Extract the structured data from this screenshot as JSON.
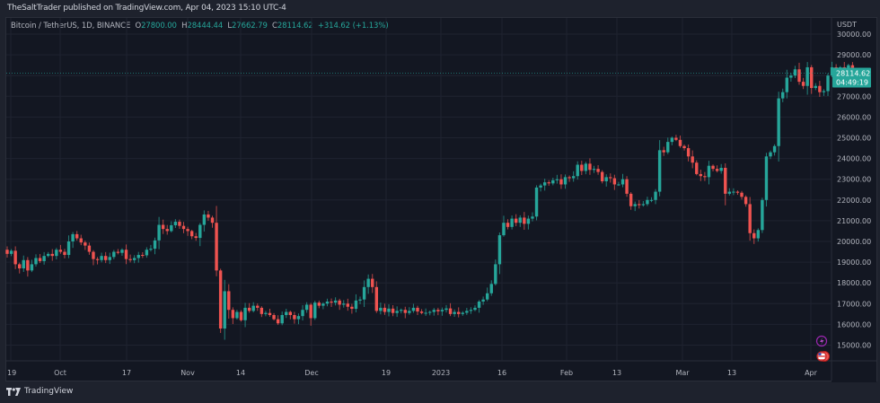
{
  "publish_line": "TheSaltTrader published on TradingView.com, Apr 04, 2023 15:10 UTC-4",
  "legend": {
    "symbol": "Bitcoin / TetherUS, 1D, BINANCE",
    "o_label": "O",
    "o_value": "27800.00",
    "h_label": "H",
    "h_value": "28444.44",
    "l_label": "L",
    "l_value": "27662.79",
    "c_label": "C",
    "c_value": "28114.62",
    "change": "+314.62 (+1.13%)"
  },
  "price_scale": {
    "currency": "USDT",
    "ticks": [
      "30000.00",
      "29000.00",
      "28000.00",
      "27000.00",
      "26000.00",
      "25000.00",
      "24000.00",
      "23000.00",
      "22000.00",
      "21000.00",
      "20000.00",
      "19000.00",
      "18000.00",
      "17000.00",
      "16000.00",
      "15000.00"
    ],
    "last_price": "28114.62",
    "countdown": "04:49:19"
  },
  "time_scale": {
    "labels": [
      "19",
      "Oct",
      "17",
      "Nov",
      "14",
      "Dec",
      "19",
      "2023",
      "16",
      "Feb",
      "13",
      "Mar",
      "13",
      "Apr"
    ]
  },
  "footer": {
    "brand": "TradingView"
  },
  "colors": {
    "up": "#26a69a",
    "down": "#ef5350",
    "bg": "#131722",
    "grid": "#1f2330",
    "accent": "#26a69a"
  },
  "chart_data": {
    "type": "candlestick",
    "title": "Bitcoin / TetherUS, 1D, BINANCE",
    "ylabel": "USDT",
    "ylim": [
      14500,
      30300
    ],
    "x_tick_labels": [
      "19",
      "Oct",
      "17",
      "Nov",
      "14",
      "Dec",
      "19",
      "2023",
      "16",
      "Feb",
      "13",
      "Mar",
      "13",
      "Apr"
    ],
    "last_close": 28114.62,
    "closes": [
      19400,
      19550,
      18900,
      18700,
      19100,
      18600,
      18900,
      19200,
      19050,
      19300,
      19400,
      19300,
      19600,
      19500,
      19350,
      20000,
      20350,
      20150,
      19950,
      19800,
      19500,
      19150,
      19100,
      19300,
      19100,
      19250,
      19500,
      19450,
      19600,
      19150,
      19100,
      19200,
      19350,
      19330,
      19600,
      19650,
      20050,
      20800,
      20600,
      20500,
      20780,
      20950,
      20750,
      20600,
      20500,
      20250,
      20170,
      20800,
      21300,
      21150,
      20900,
      18600,
      15800,
      17600,
      16700,
      16300,
      16600,
      16200,
      16800,
      16650,
      16900,
      16800,
      16500,
      16550,
      16450,
      16250,
      16050,
      16450,
      16600,
      16450,
      16250,
      16400,
      16700,
      16950,
      16300,
      17050,
      16900,
      17000,
      17100,
      17050,
      17150,
      16950,
      17000,
      16850,
      16750,
      17150,
      17200,
      17800,
      18200,
      17800,
      16650,
      16800,
      16600,
      16760,
      16550,
      16650,
      16700,
      16550,
      16650,
      16800,
      16620,
      16550,
      16560,
      16600,
      16700,
      16630,
      16700,
      16770,
      16500,
      16600,
      16500,
      16560,
      16650,
      16700,
      16800,
      17100,
      17200,
      17500,
      17950,
      18900,
      20300,
      20900,
      20700,
      21100,
      20900,
      21150,
      20850,
      21100,
      21200,
      22600,
      22700,
      22850,
      22800,
      22950,
      23000,
      22750,
      23100,
      23050,
      23150,
      23700,
      23400,
      23750,
      23450,
      23500,
      23350,
      22900,
      23100,
      23050,
      22750,
      22750,
      23000,
      22300,
      21700,
      21800,
      21750,
      21800,
      22000,
      22000,
      22400,
      24400,
      24300,
      24800,
      25000,
      24900,
      24600,
      24500,
      24100,
      23800,
      23250,
      23150,
      23100,
      23650,
      23500,
      23400,
      23550,
      22300,
      22400,
      22400,
      22350,
      22150,
      21800,
      20400,
      20150,
      20550,
      22000,
      24100,
      24300,
      24600,
      26900,
      27200,
      27900,
      28000,
      28300,
      27700,
      27500,
      28400,
      27400,
      27500,
      27200,
      27250,
      28000,
      28400,
      28150,
      28400,
      28000,
      28500,
      28300,
      27900,
      28114.62
    ]
  }
}
